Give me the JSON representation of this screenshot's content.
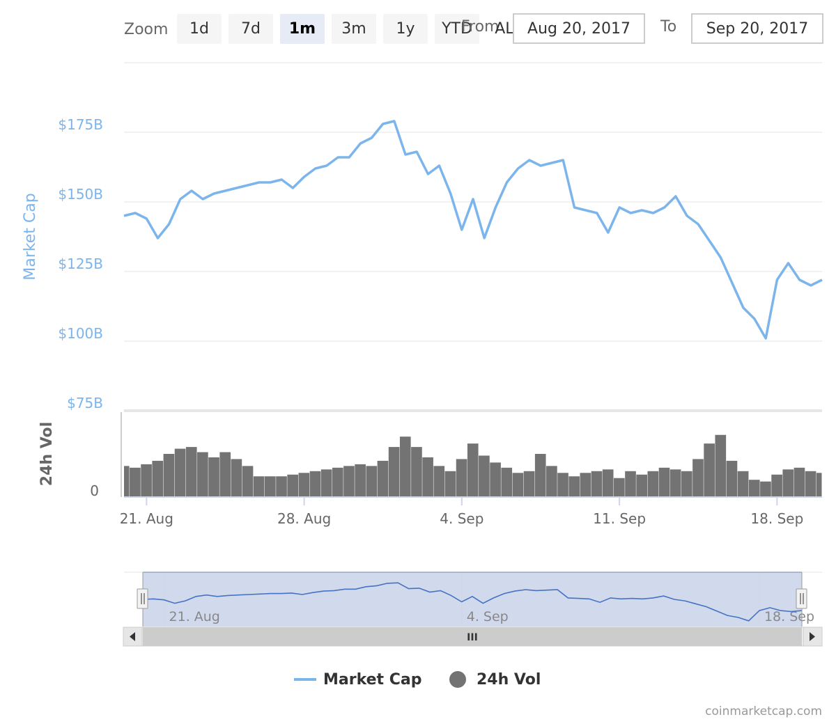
{
  "toolbar": {
    "zoom_label": "Zoom",
    "buttons": [
      "1d",
      "7d",
      "1m",
      "3m",
      "1y",
      "YTD",
      "ALL"
    ],
    "active": "1m",
    "from_label": "From",
    "from_value": "Aug 20, 2017",
    "to_label": "To",
    "to_value": "Sep 20, 2017"
  },
  "legend": {
    "market_cap": "Market Cap",
    "volume": "24h Vol"
  },
  "credits": "coinmarketcap.com",
  "colors": {
    "market_cap_line": "#7cb5ec",
    "volume_bars": "#737373",
    "navigator_line": "#4572c4",
    "navigator_mask": "rgba(102,133,194,0.3)"
  },
  "chart_data": [
    {
      "type": "line",
      "title": "",
      "ylabel": "Market Cap",
      "ylim": [
        75,
        200
      ],
      "yticks": [
        "$75B",
        "$100B",
        "$125B",
        "$150B",
        "$175B"
      ],
      "ytick_values": [
        75,
        100,
        125,
        150,
        175
      ],
      "xlim_days": [
        0,
        31
      ],
      "xticks": [
        "21. Aug",
        "28. Aug",
        "4. Sep",
        "11. Sep",
        "18. Sep"
      ],
      "xtick_dates": [
        "2017-08-21",
        "2017-08-28",
        "2017-09-04",
        "2017-09-11",
        "2017-09-18"
      ],
      "grid": true,
      "series": [
        {
          "name": "Market Cap",
          "x": [
            "2017-08-20",
            "2017-08-20 12:00",
            "2017-08-21",
            "2017-08-21 12:00",
            "2017-08-22",
            "2017-08-22 12:00",
            "2017-08-23",
            "2017-08-23 12:00",
            "2017-08-24",
            "2017-08-24 12:00",
            "2017-08-25",
            "2017-08-25 12:00",
            "2017-08-26",
            "2017-08-26 12:00",
            "2017-08-27",
            "2017-08-27 12:00",
            "2017-08-28",
            "2017-08-28 12:00",
            "2017-08-29",
            "2017-08-29 12:00",
            "2017-08-30",
            "2017-08-30 12:00",
            "2017-08-31",
            "2017-08-31 12:00",
            "2017-09-01",
            "2017-09-01 12:00",
            "2017-09-02",
            "2017-09-02 12:00",
            "2017-09-03",
            "2017-09-03 12:00",
            "2017-09-04",
            "2017-09-04 12:00",
            "2017-09-05",
            "2017-09-05 12:00",
            "2017-09-06",
            "2017-09-06 12:00",
            "2017-09-07",
            "2017-09-07 12:00",
            "2017-09-08",
            "2017-09-08 12:00",
            "2017-09-09",
            "2017-09-09 12:00",
            "2017-09-10",
            "2017-09-10 12:00",
            "2017-09-11",
            "2017-09-11 12:00",
            "2017-09-12",
            "2017-09-12 12:00",
            "2017-09-13",
            "2017-09-13 12:00",
            "2017-09-14",
            "2017-09-14 12:00",
            "2017-09-15",
            "2017-09-15 12:00",
            "2017-09-16",
            "2017-09-16 12:00",
            "2017-09-17",
            "2017-09-17 12:00",
            "2017-09-18",
            "2017-09-18 12:00",
            "2017-09-19",
            "2017-09-19 12:00",
            "2017-09-20"
          ],
          "values": [
            145,
            146,
            144,
            137,
            142,
            151,
            154,
            151,
            153,
            154,
            155,
            156,
            157,
            157,
            158,
            155,
            159,
            162,
            163,
            166,
            166,
            171,
            173,
            178,
            179,
            167,
            168,
            160,
            163,
            153,
            140,
            151,
            137,
            148,
            157,
            162,
            165,
            163,
            164,
            165,
            148,
            147,
            146,
            139,
            148,
            146,
            147,
            146,
            148,
            152,
            145,
            142,
            136,
            130,
            121,
            112,
            108,
            101,
            122,
            128,
            122,
            120,
            122
          ]
        }
      ]
    },
    {
      "type": "bar",
      "title": "",
      "ylabel": "24h Vol",
      "yticks": [
        "0"
      ],
      "ytick_values": [
        0
      ],
      "ylim": [
        0,
        100
      ],
      "x": [
        "2017-08-20",
        "2017-08-20 12:00",
        "2017-08-21",
        "2017-08-21 12:00",
        "2017-08-22",
        "2017-08-22 12:00",
        "2017-08-23",
        "2017-08-23 12:00",
        "2017-08-24",
        "2017-08-24 12:00",
        "2017-08-25",
        "2017-08-25 12:00",
        "2017-08-26",
        "2017-08-26 12:00",
        "2017-08-27",
        "2017-08-27 12:00",
        "2017-08-28",
        "2017-08-28 12:00",
        "2017-08-29",
        "2017-08-29 12:00",
        "2017-08-30",
        "2017-08-30 12:00",
        "2017-08-31",
        "2017-08-31 12:00",
        "2017-09-01",
        "2017-09-01 12:00",
        "2017-09-02",
        "2017-09-02 12:00",
        "2017-09-03",
        "2017-09-03 12:00",
        "2017-09-04",
        "2017-09-04 12:00",
        "2017-09-05",
        "2017-09-05 12:00",
        "2017-09-06",
        "2017-09-06 12:00",
        "2017-09-07",
        "2017-09-07 12:00",
        "2017-09-08",
        "2017-09-08 12:00",
        "2017-09-09",
        "2017-09-09 12:00",
        "2017-09-10",
        "2017-09-10 12:00",
        "2017-09-11",
        "2017-09-11 12:00",
        "2017-09-12",
        "2017-09-12 12:00",
        "2017-09-13",
        "2017-09-13 12:00",
        "2017-09-14",
        "2017-09-14 12:00",
        "2017-09-15",
        "2017-09-15 12:00",
        "2017-09-16",
        "2017-09-16 12:00",
        "2017-09-17",
        "2017-09-17 12:00",
        "2017-09-18",
        "2017-09-18 12:00",
        "2017-09-19",
        "2017-09-19 12:00",
        "2017-09-20"
      ],
      "values": [
        36,
        34,
        38,
        42,
        50,
        56,
        58,
        52,
        46,
        52,
        44,
        36,
        24,
        24,
        24,
        26,
        28,
        30,
        32,
        34,
        36,
        38,
        36,
        42,
        58,
        70,
        58,
        46,
        36,
        30,
        44,
        62,
        48,
        40,
        34,
        28,
        30,
        50,
        36,
        28,
        24,
        28,
        30,
        32,
        22,
        30,
        26,
        30,
        34,
        32,
        30,
        44,
        62,
        72,
        42,
        30,
        20,
        18,
        26,
        32,
        34,
        30,
        28
      ]
    }
  ],
  "navigator": {
    "xticks": [
      "21. Aug",
      "4. Sep",
      "18. Sep"
    ],
    "scroll_handle": "III"
  }
}
